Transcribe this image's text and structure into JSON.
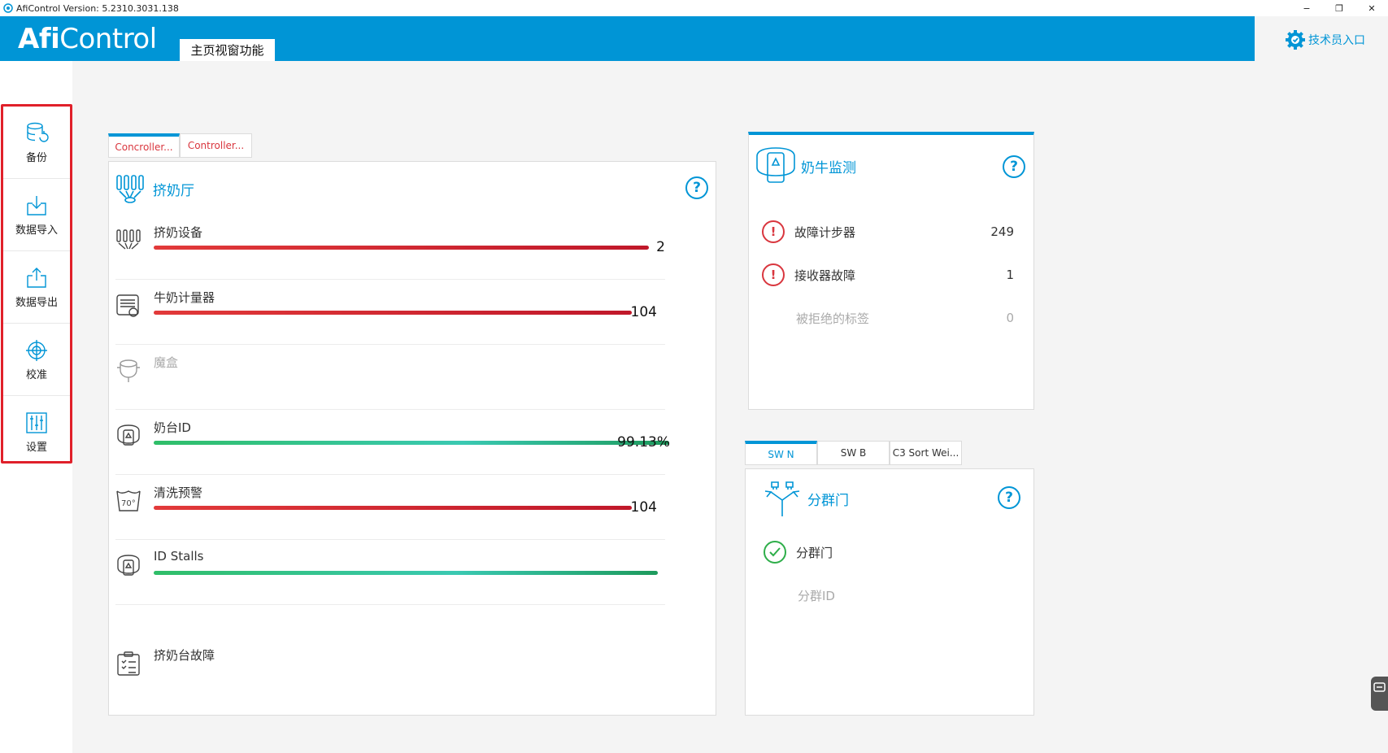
{
  "window": {
    "title": "AfiControl Version: 5.2310.3031.138",
    "controls": {
      "minimize": "−",
      "restore": "❐",
      "close": "✕"
    }
  },
  "header": {
    "logo_bold": "Afi",
    "logo_light": "Control",
    "page_tab": "主页视窗功能",
    "tech_entry": "技术员入口"
  },
  "sidebar": {
    "items": [
      {
        "label": "备份",
        "icon": "database-backup-icon"
      },
      {
        "label": "数据导入",
        "icon": "import-icon"
      },
      {
        "label": "数据导出",
        "icon": "export-icon"
      },
      {
        "label": "校准",
        "icon": "crosshair-icon"
      },
      {
        "label": "设置",
        "icon": "sliders-icon"
      }
    ]
  },
  "parlor": {
    "tabs": [
      "Concroller...",
      "Controller..."
    ],
    "title": "挤奶厅",
    "help": "?",
    "rows": [
      {
        "label": "挤奶设备",
        "value": "2",
        "status": "red",
        "fill": 0.952
      },
      {
        "label": "牛奶计量器",
        "value": "104",
        "status": "red",
        "fill": 0.919
      },
      {
        "label": "魔盒",
        "value": "",
        "status": "none",
        "fill": 0
      },
      {
        "label": "奶台ID",
        "value": "99.13%",
        "status": "green",
        "fill": 0.9913
      },
      {
        "label": "清洗预警",
        "value": "104",
        "status": "red",
        "fill": 0.919
      },
      {
        "label": "ID Stalls",
        "value": "",
        "status": "green",
        "fill": 0.968
      },
      {
        "label": "挤奶台故障",
        "value": "",
        "status": "none",
        "fill": 0
      }
    ]
  },
  "cow_monitor": {
    "title": "奶牛监测",
    "help": "?",
    "rows": [
      {
        "label": "故障计步器",
        "value": "249",
        "state": "error"
      },
      {
        "label": "接收器故障",
        "value": "1",
        "state": "error"
      },
      {
        "label": "被拒绝的标签",
        "value": "0",
        "state": "muted"
      }
    ]
  },
  "sort_gate": {
    "tabs": [
      "SW N",
      "SW B",
      "C3 Sort Wei..."
    ],
    "title": "分群门",
    "help": "?",
    "rows": [
      {
        "label": "分群门",
        "state": "ok"
      },
      {
        "label": "分群ID",
        "state": "muted"
      }
    ]
  },
  "colors": {
    "accent": "#0095d6",
    "error": "#d9363e",
    "ok": "#2eae4a",
    "highlight": "#e0202a"
  }
}
